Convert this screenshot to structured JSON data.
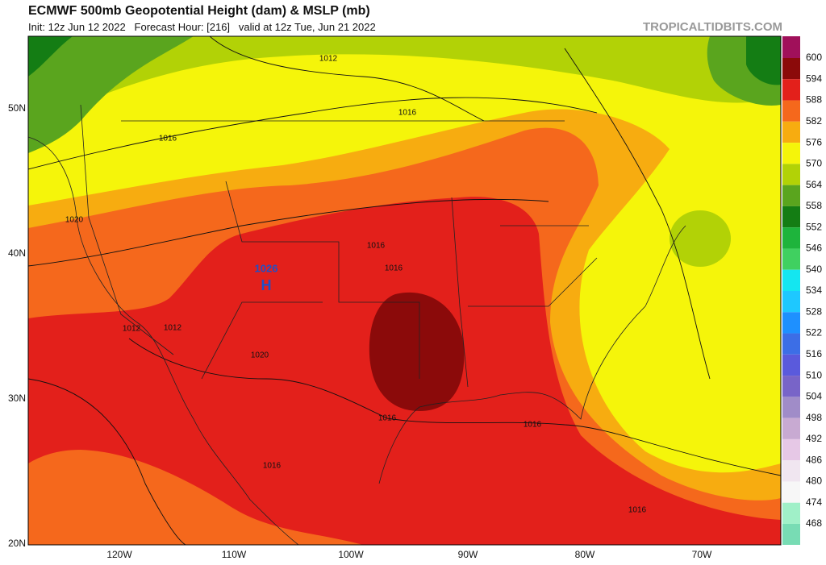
{
  "header": {
    "title": "ECMWF 500mb Geopotential Height (dam) & MSLP (mb)",
    "subtitle": "Init: 12z Jun 12 2022   Forecast Hour: [216]   valid at 12z Tue, Jun 21 2022",
    "watermark": "TROPICALTIDBITS.COM"
  },
  "map": {
    "lat_labels": [
      "50N",
      "40N",
      "30N",
      "20N"
    ],
    "lon_labels": [
      "120W",
      "110W",
      "100W",
      "90W",
      "80W",
      "70W"
    ],
    "contour_labels": [
      "1012",
      "1016",
      "1016",
      "1020",
      "1016",
      "1016",
      "1012",
      "1012",
      "1020",
      "1016",
      "1016",
      "1016",
      "1016"
    ],
    "high": {
      "pressure": "1026",
      "symbol": "H"
    }
  },
  "colorbar": {
    "labels": [
      600,
      594,
      588,
      582,
      576,
      570,
      564,
      558,
      552,
      546,
      540,
      534,
      528,
      522,
      516,
      510,
      504,
      498,
      492,
      486,
      480,
      474,
      468
    ],
    "colors": [
      "#a0105a",
      "#8b0a0a",
      "#e3201b",
      "#f5681c",
      "#f7ac10",
      "#f5f50a",
      "#b2d206",
      "#5aa51e",
      "#147d14",
      "#1eb43c",
      "#40d060",
      "#14e6f0",
      "#1ec8ff",
      "#1e90ff",
      "#3c6ee6",
      "#5a5adc",
      "#7864c8",
      "#a08cc8",
      "#c8aad2",
      "#e6c8e6",
      "#f0e6f0",
      "#f7f7f7",
      "#a0f0c8",
      "#78dcb4"
    ]
  }
}
